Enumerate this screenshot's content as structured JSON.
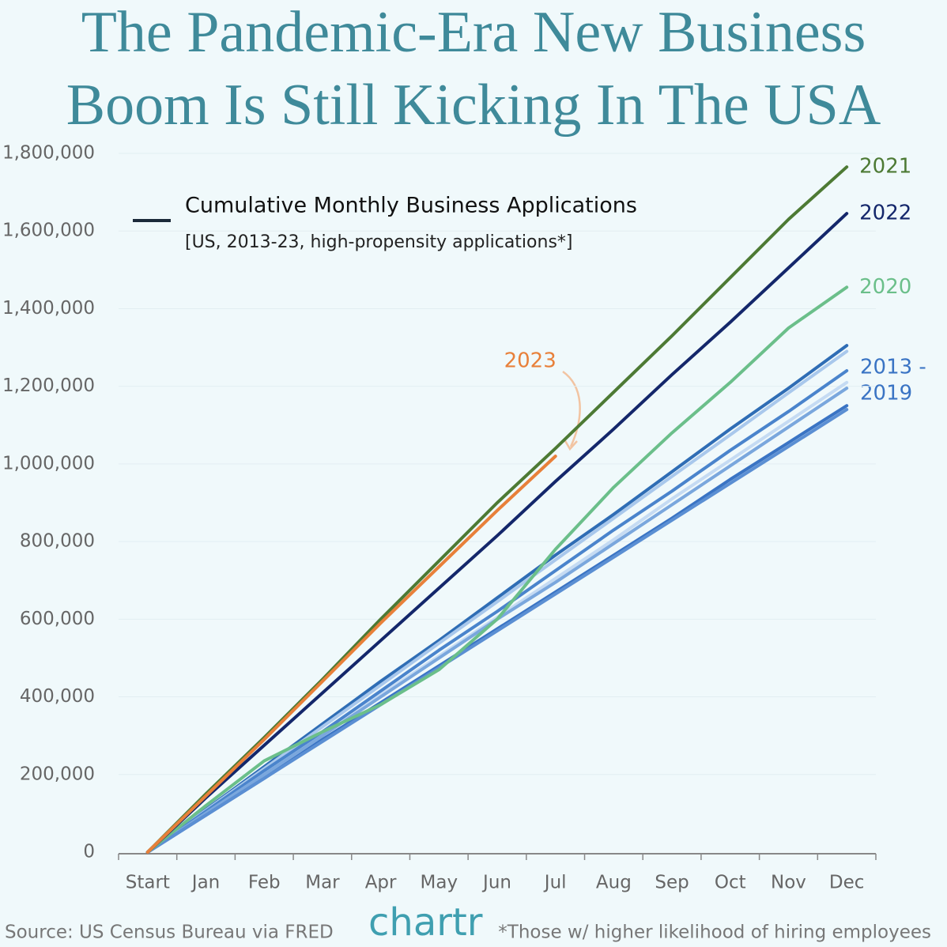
{
  "chart_data": {
    "type": "line",
    "title": [
      "The Pandemic-Era New Business",
      "Boom Is Still Kicking In The USA"
    ],
    "legend_title": "Cumulative Monthly Business Applications",
    "legend_subtitle": "[US, 2013-23, high-propensity applications*]",
    "group_label": [
      "2013 -",
      "2019"
    ],
    "source": "Source: US Census Bureau via FRED",
    "brand": "chartr",
    "footnote": "*Those w/ higher likelihood of hiring employees",
    "categories": [
      "Start",
      "Jan",
      "Feb",
      "Mar",
      "Apr",
      "May",
      "Jun",
      "Jul",
      "Aug",
      "Sep",
      "Oct",
      "Nov",
      "Dec"
    ],
    "ylim": [
      0,
      1800000
    ],
    "yticks": [
      0,
      {
        "value": 200000,
        "label": "200,000"
      },
      {
        "value": 400000,
        "label": "400,000"
      },
      {
        "value": 600000,
        "label": "600,000"
      },
      {
        "value": 800000,
        "label": "800,000"
      },
      {
        "value": 1000000,
        "label": "1,000,000"
      },
      {
        "value": 1200000,
        "label": "1,200,000"
      },
      {
        "value": 1400000,
        "label": "1,400,000"
      },
      {
        "value": 1600000,
        "label": "1,600,000"
      },
      {
        "value": 1800000,
        "label": "1,800,000"
      }
    ],
    "grid": true,
    "series": [
      {
        "color": "#2f6db5",
        "values": [
          0,
          110000,
          220000,
          330000,
          440000,
          545000,
          655000,
          765000,
          870000,
          980000,
          1090000,
          1195000,
          1305000
        ]
      },
      {
        "color": "#a9c8ec",
        "values": [
          0,
          108000,
          215000,
          323000,
          430000,
          538000,
          645000,
          753000,
          860000,
          968000,
          1075000,
          1183000,
          1290000
        ]
      },
      {
        "color": "#4a84cc",
        "values": [
          0,
          105000,
          210000,
          310000,
          415000,
          520000,
          620000,
          725000,
          830000,
          930000,
          1035000,
          1135000,
          1240000
        ]
      },
      {
        "color": "#c5dbf3",
        "values": [
          0,
          100000,
          200000,
          300000,
          405000,
          505000,
          605000,
          705000,
          805000,
          910000,
          1010000,
          1110000,
          1210000
        ]
      },
      {
        "color": "#7aa7dd",
        "values": [
          0,
          100000,
          200000,
          300000,
          400000,
          500000,
          600000,
          695000,
          795000,
          895000,
          995000,
          1095000,
          1195000
        ]
      },
      {
        "color": "#3a74c4",
        "values": [
          0,
          95000,
          190000,
          290000,
          385000,
          480000,
          575000,
          670000,
          765000,
          860000,
          960000,
          1055000,
          1150000
        ]
      },
      {
        "color": "#5b8fd3",
        "values": [
          0,
          95000,
          190000,
          285000,
          380000,
          475000,
          570000,
          665000,
          760000,
          855000,
          950000,
          1045000,
          1140000
        ]
      },
      {
        "name": "2020",
        "color": "#6bbf8a",
        "values": [
          0,
          120000,
          235000,
          310000,
          380000,
          470000,
          600000,
          780000,
          940000,
          1080000,
          1210000,
          1350000,
          1455000
        ]
      },
      {
        "name": "2022",
        "color": "#14276b",
        "values": [
          0,
          140000,
          275000,
          410000,
          545000,
          680000,
          815000,
          955000,
          1090000,
          1230000,
          1365000,
          1505000,
          1645000
        ]
      },
      {
        "name": "2021",
        "color": "#4d7a34",
        "values": [
          0,
          150000,
          295000,
          445000,
          600000,
          750000,
          900000,
          1040000,
          1185000,
          1330000,
          1480000,
          1630000,
          1765000
        ]
      },
      {
        "name": "2023",
        "color": "#e8803a",
        "values": [
          0,
          145000,
          290000,
          440000,
          590000,
          735000,
          880000,
          1020000,
          null,
          null,
          null,
          null,
          null
        ]
      }
    ]
  }
}
